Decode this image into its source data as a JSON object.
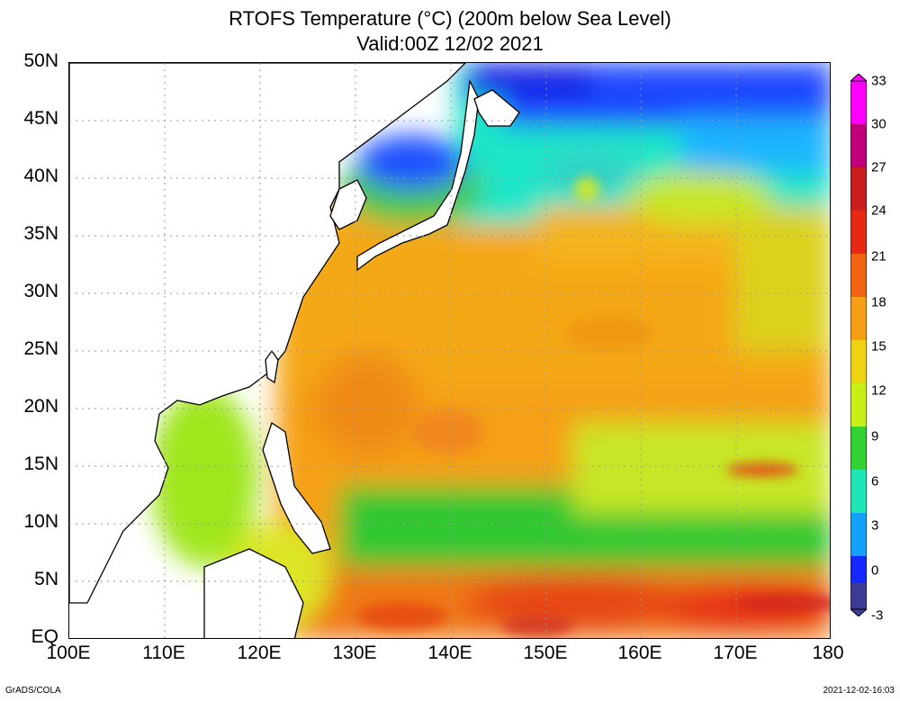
{
  "title": {
    "line1": "RTOFS Temperature (°C) (200m below Sea Level)",
    "line2": "Valid:00Z 12/02 2021"
  },
  "map": {
    "lat_labels": [
      "50N",
      "45N",
      "40N",
      "35N",
      "30N",
      "25N",
      "20N",
      "15N",
      "10N",
      "5N",
      "EQ"
    ],
    "lon_labels": [
      "100E",
      "110E",
      "120E",
      "130E",
      "140E",
      "150E",
      "160E",
      "170E",
      "180"
    ],
    "lat_range": [
      0,
      50
    ],
    "lon_range": [
      100,
      180
    ],
    "gridlines": "dotted",
    "land_color": "#ffffff",
    "coastline_color": "#000000"
  },
  "colorbar": {
    "ticks": [
      "33",
      "30",
      "27",
      "24",
      "21",
      "18",
      "15",
      "12",
      "9",
      "6",
      "3",
      "0",
      "-3"
    ],
    "range": [
      -3,
      33
    ],
    "colors": [
      "#ff00ff",
      "#c0007a",
      "#c81e1e",
      "#e62814",
      "#f06414",
      "#f5a014",
      "#f0d214",
      "#c8f014",
      "#32d232",
      "#1ee6b4",
      "#14a0ff",
      "#1428ff",
      "#3c3c96"
    ]
  },
  "credits": {
    "left": "GrADS/COLA",
    "right": "2021-12-02-16:03"
  }
}
